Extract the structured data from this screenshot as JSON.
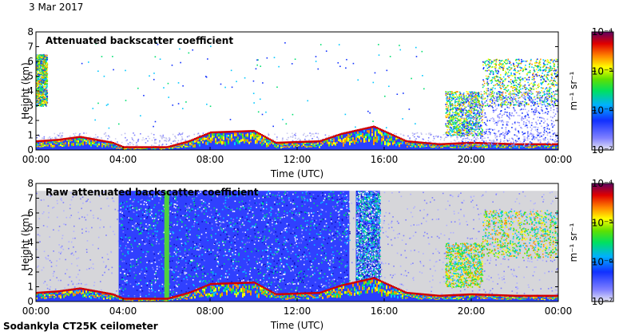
{
  "header": {
    "date": "3 Mar 2017"
  },
  "footer": {
    "instrument": "Sodankyla CT25K ceilometer"
  },
  "colors": {
    "frame": "#000000",
    "background_low": "#3344ff",
    "cloud_base": "#cc0000",
    "raw_noise_grey": "#d4d4d8"
  },
  "chart_data": [
    {
      "type": "heatmap",
      "title": "Attenuated backscatter coefficient",
      "xlabel": "Time (UTC)",
      "ylabel": "Height (km)",
      "xlim": [
        "00:00",
        "24:00"
      ],
      "ylim": [
        0,
        8
      ],
      "x_ticks": [
        "00:00",
        "04:00",
        "08:00",
        "12:00",
        "16:00",
        "20:00",
        "00:00"
      ],
      "y_ticks": [
        "0",
        "1",
        "2",
        "3",
        "4",
        "5",
        "6",
        "7",
        "8"
      ],
      "boundary_layer_top_km": [
        {
          "t": 0,
          "h": 0.6
        },
        {
          "t": 1,
          "h": 0.7
        },
        {
          "t": 2,
          "h": 0.9
        },
        {
          "t": 3.5,
          "h": 0.5
        },
        {
          "t": 4,
          "h": 0.2
        },
        {
          "t": 6,
          "h": 0.2
        },
        {
          "t": 7,
          "h": 0.6
        },
        {
          "t": 8,
          "h": 1.2
        },
        {
          "t": 10,
          "h": 1.3
        },
        {
          "t": 11,
          "h": 0.5
        },
        {
          "t": 13,
          "h": 0.6
        },
        {
          "t": 14,
          "h": 1.1
        },
        {
          "t": 15.5,
          "h": 1.6
        },
        {
          "t": 17,
          "h": 0.6
        },
        {
          "t": 18.5,
          "h": 0.4
        },
        {
          "t": 20,
          "h": 0.5
        },
        {
          "t": 22,
          "h": 0.4
        },
        {
          "t": 24,
          "h": 0.4
        }
      ],
      "elevated_layers_km": [
        {
          "t0": 0,
          "t1": 0.5,
          "h0": 3.0,
          "h1": 6.5
        },
        {
          "t0": 18.8,
          "t1": 20.5,
          "h0": 1.0,
          "h1": 4.0
        },
        {
          "t0": 20.5,
          "t1": 24,
          "h0": 3.0,
          "h1": 6.2
        }
      ],
      "colorbar": {
        "unit": "m⁻¹ sr⁻¹",
        "scale": "log",
        "tick_labels": [
          "10⁻⁴",
          "10⁻⁵",
          "10⁻⁶",
          "10⁻⁷"
        ],
        "range": [
          1e-07,
          0.0001
        ]
      }
    },
    {
      "type": "heatmap",
      "title": "Raw attenuated backscatter coefficient",
      "xlabel": "Time (UTC)",
      "ylabel": "Height (km)",
      "xlim": [
        "00:00",
        "24:00"
      ],
      "ylim": [
        0,
        8
      ],
      "x_ticks": [
        "00:00",
        "04:00",
        "08:00",
        "12:00",
        "16:00",
        "20:00",
        "00:00"
      ],
      "y_ticks": [
        "0",
        "1",
        "2",
        "3",
        "4",
        "5",
        "6",
        "7",
        "8"
      ],
      "noise_top_km": 7.5,
      "dense_noise_periods_h": [
        [
          3.8,
          14.4
        ],
        [
          14.7,
          15.8
        ]
      ],
      "colorbar": {
        "unit": "m⁻¹ sr⁻¹",
        "scale": "log",
        "tick_labels": [
          "10⁻⁴",
          "10⁻⁵",
          "10⁻⁶",
          "10⁻⁷"
        ],
        "range": [
          1e-07,
          0.0001
        ]
      }
    }
  ]
}
